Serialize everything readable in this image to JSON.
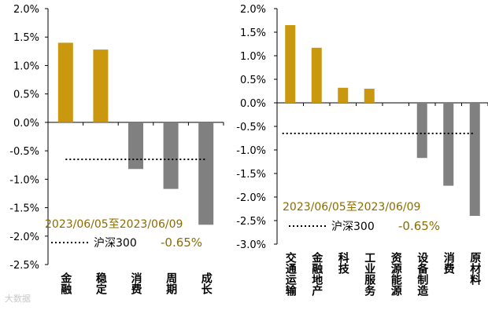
{
  "chart_data": [
    {
      "type": "bar",
      "categories": [
        "金融",
        "稳定",
        "消费",
        "周期",
        "成长"
      ],
      "values": [
        1.4,
        1.28,
        -0.82,
        -1.17,
        -1.8
      ],
      "bar_colors": [
        "#C9980E",
        "#C9980E",
        "#808080",
        "#808080",
        "#808080"
      ],
      "ylim": [
        -2.5,
        2.0
      ],
      "ytick_labels": [
        "2.0%",
        "1.5%",
        "1.0%",
        "0.5%",
        "0.0%",
        "-0.5%",
        "-1.0%",
        "-1.5%",
        "-2.0%",
        "-2.5%"
      ],
      "reference_line": {
        "name": "沪深300",
        "value": -0.65,
        "style": "dotted"
      },
      "annotation": {
        "period": "2023/06/05至2023/06/09",
        "series": "沪深300",
        "value": "-0.65%"
      },
      "grid": false
    },
    {
      "type": "bar",
      "categories": [
        "交通运输",
        "金融地产",
        "科技",
        "工业服务",
        "资源能源",
        "设备制造",
        "消费",
        "原材料"
      ],
      "values": [
        1.65,
        1.17,
        0.32,
        0.3,
        0.0,
        -1.17,
        -1.76,
        -2.4
      ],
      "bar_colors": [
        "#C9980E",
        "#C9980E",
        "#C9980E",
        "#C9980E",
        "#C9980E",
        "#808080",
        "#808080",
        "#808080"
      ],
      "ylim": [
        -3.0,
        2.0
      ],
      "ytick_labels": [
        "2.0%",
        "1.5%",
        "1.0%",
        "0.5%",
        "0.0%",
        "-0.5%",
        "-1.0%",
        "-1.5%",
        "-2.0%",
        "-2.5%",
        "-3.0%"
      ],
      "reference_line": {
        "name": "沪深300",
        "value": -0.65,
        "style": "dotted"
      },
      "annotation": {
        "period": "2023/06/05至2023/06/09",
        "series": "沪深300",
        "value": "-0.65%"
      },
      "grid": false
    }
  ],
  "watermark": "大数据",
  "colors": {
    "positive": "#C9980E",
    "negative": "#808080",
    "annotation_text": "#8B6C00",
    "axis": "#000000"
  }
}
